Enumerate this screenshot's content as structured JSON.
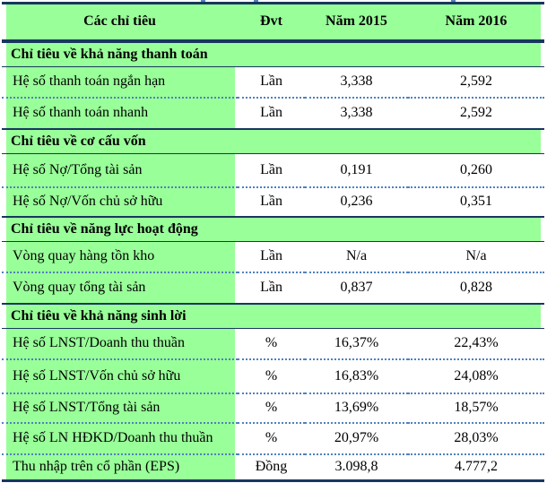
{
  "colors": {
    "green": "#99ff99",
    "navy": "#17375e",
    "dotted": "#4f81bd",
    "text": "#000000"
  },
  "table": {
    "columns": [
      "Các chỉ tiêu",
      "Đvt",
      "Năm 2015",
      "Năm 2016"
    ],
    "sections": [
      {
        "title": "Chỉ tiêu về khả năng thanh toán",
        "rows": [
          {
            "label": "Hệ số thanh toán ngắn hạn",
            "unit": "Lần",
            "nam2015": "3,338",
            "nam2016": "2,592"
          },
          {
            "label": "Hệ số thanh toán nhanh",
            "unit": "Lần",
            "nam2015": "3,338",
            "nam2016": "2,592"
          }
        ]
      },
      {
        "title": "Chỉ tiêu về cơ cấu vốn",
        "rows": [
          {
            "label": "Hệ số Nợ/Tổng tài sản",
            "unit": "Lần",
            "nam2015": "0,191",
            "nam2016": "0,260"
          },
          {
            "label": "Hệ số Nợ/Vốn chủ sở hữu",
            "unit": "Lần",
            "nam2015": "0,236",
            "nam2016": "0,351"
          }
        ]
      },
      {
        "title": "Chỉ tiêu về năng lực hoạt động",
        "rows": [
          {
            "label": "Vòng quay hàng tồn kho",
            "unit": "Lần",
            "nam2015": "N/a",
            "nam2016": "N/a"
          },
          {
            "label": "Vòng quay tổng tài sản",
            "unit": "Lần",
            "nam2015": "0,837",
            "nam2016": "0,828"
          }
        ]
      },
      {
        "title": "Chỉ tiêu về khả năng sinh lời",
        "rows": [
          {
            "label": "Hệ số LNST/Doanh thu thuần",
            "unit": "%",
            "nam2015": "16,37%",
            "nam2016": "22,43%"
          },
          {
            "label": "Hệ số LNST/Vốn chủ sở hữu",
            "unit": "%",
            "nam2015": "16,83%",
            "nam2016": "24,08%"
          },
          {
            "label": "Hệ số LNST/Tổng tài sản",
            "unit": "%",
            "nam2015": "13,69%",
            "nam2016": "18,57%"
          },
          {
            "label": "Hệ số LN HĐKD/Doanh thu thuần",
            "unit": "%",
            "nam2015": "20,97%",
            "nam2016": "28,03%"
          },
          {
            "label": "Thu nhập trên cổ phần (EPS)",
            "unit": "Đồng",
            "nam2015": "3.098,8",
            "nam2016": "4.777,2"
          }
        ]
      }
    ]
  }
}
